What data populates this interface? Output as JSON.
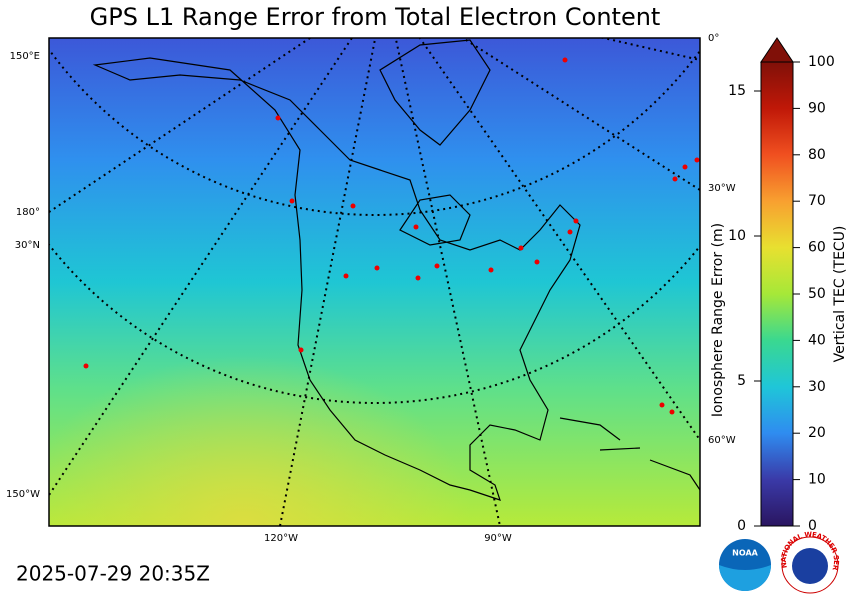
{
  "title": "GPS L1 Range Error from Total Electron Content",
  "timestamp": "2025-07-29 20:35Z",
  "map": {
    "graticule_labels": [
      "150°E",
      "180°",
      "30°N",
      "150°W",
      "120°W",
      "90°W",
      "0°",
      "30°W",
      "60°W"
    ]
  },
  "range_axis": {
    "label": "Ionosphere Range Error (m)",
    "lim": [
      0,
      16
    ],
    "ticks": [
      0,
      5,
      10,
      15
    ]
  },
  "colorbar": {
    "label": "Vertical TEC (TECU)",
    "lim": [
      0,
      100
    ],
    "ticks": [
      0,
      10,
      20,
      30,
      40,
      50,
      60,
      70,
      80,
      90,
      100
    ]
  },
  "logos": {
    "noaa": "NOAA",
    "nws": "NATIONAL WEATHER SERVICE"
  }
}
